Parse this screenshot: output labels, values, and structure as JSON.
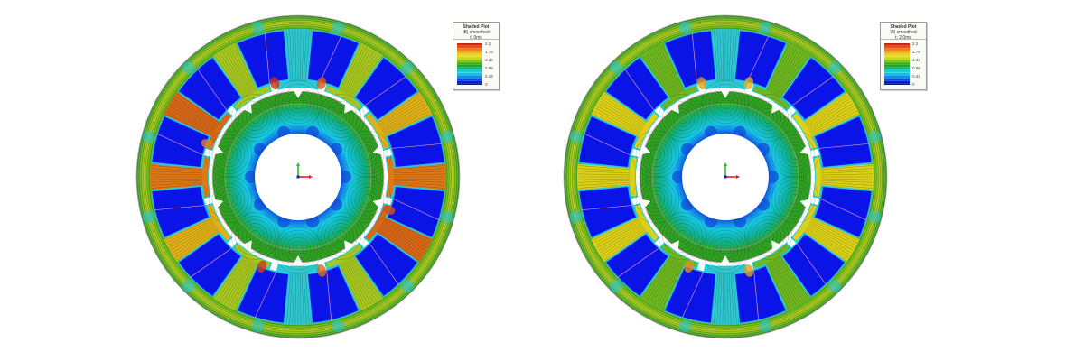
{
  "figure": {
    "background": "#ffffff",
    "plots": [
      {
        "id": "left",
        "legend": {
          "title": "Shaded Plot",
          "quantity": "|B| smoothed",
          "time": "t: 0ms",
          "ticks": [
            "2.2",
            "1.76",
            "1.32",
            "0.88",
            "0.44",
            "0"
          ]
        },
        "description": "Flux density in 12-slot 10-pole PM motor at t = 0 ms; stator teeth at left/right and lower-right/upper-left heavily saturated (orange-red)"
      },
      {
        "id": "right",
        "legend": {
          "title": "Shaded Plot",
          "quantity": "|B| smoothed",
          "time": "t: 2.0ms",
          "ticks": [
            "2.2",
            "1.76",
            "1.32",
            "0.88",
            "0.44",
            "0"
          ]
        },
        "description": "Flux density at t = 2.0 ms; stator teeth mostly yellow, lower saturation"
      }
    ],
    "colormap": [
      "#0010b8",
      "#1060e0",
      "#18d8e8",
      "#10b8a0",
      "#18a428",
      "#58b814",
      "#e8e020",
      "#f0b018",
      "#f07818",
      "#c8160c"
    ],
    "geometry": {
      "stator_slots": 12,
      "rotor_poles": 10,
      "axis_triad": {
        "x_color": "#e02020",
        "y_color": "#20c020",
        "origin_color": "#1020c0"
      }
    }
  }
}
